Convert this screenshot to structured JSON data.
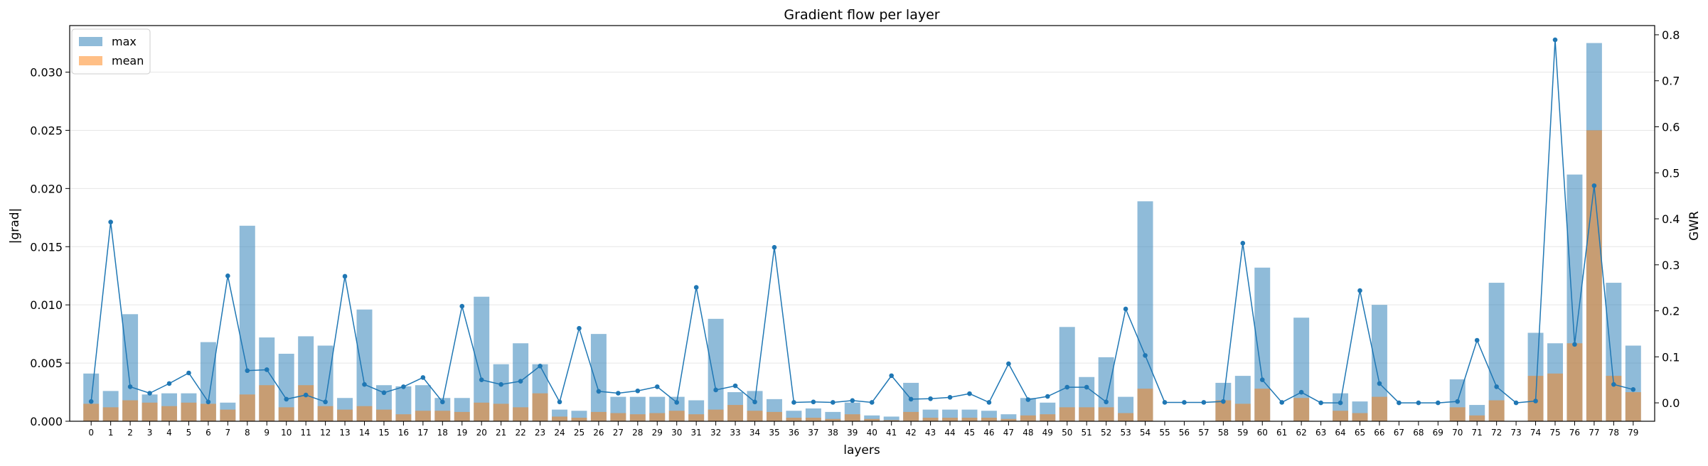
{
  "chart_data": {
    "type": "bar",
    "title": "Gradient flow per layer",
    "xlabel": "layers",
    "ylabel": "|grad|",
    "ylabel_right": "GWR",
    "ylim": [
      0,
      0.034
    ],
    "ylim_right": [
      -0.04,
      0.82
    ],
    "yticks": [
      "0.000",
      "0.005",
      "0.010",
      "0.015",
      "0.020",
      "0.025",
      "0.030"
    ],
    "yticks_right": [
      "0.0",
      "0.1",
      "0.2",
      "0.3",
      "0.4",
      "0.5",
      "0.6",
      "0.7",
      "0.8"
    ],
    "grid": "horizontal",
    "legend_position": "top-left",
    "categories": [
      "0",
      "1",
      "2",
      "3",
      "4",
      "5",
      "6",
      "7",
      "8",
      "9",
      "10",
      "11",
      "12",
      "13",
      "14",
      "15",
      "16",
      "17",
      "18",
      "19",
      "20",
      "21",
      "22",
      "23",
      "24",
      "25",
      "26",
      "27",
      "28",
      "29",
      "30",
      "31",
      "32",
      "33",
      "34",
      "35",
      "36",
      "37",
      "38",
      "39",
      "40",
      "41",
      "42",
      "43",
      "44",
      "45",
      "46",
      "47",
      "48",
      "49",
      "50",
      "51",
      "52",
      "53",
      "54",
      "55",
      "56",
      "57",
      "58",
      "59",
      "60",
      "61",
      "62",
      "63",
      "64",
      "65",
      "66",
      "67",
      "68",
      "69",
      "70",
      "71",
      "72",
      "73",
      "74",
      "75",
      "76",
      "77",
      "78",
      "79"
    ],
    "series": [
      {
        "name": "max",
        "kind": "bar",
        "color": "#1f77b4",
        "values": [
          0.0041,
          0.0026,
          0.0092,
          0.0023,
          0.0024,
          0.0024,
          0.0068,
          0.0016,
          0.0168,
          0.0072,
          0.0058,
          0.0073,
          0.0065,
          0.002,
          0.0096,
          0.0031,
          0.003,
          0.0031,
          0.002,
          0.002,
          0.0107,
          0.0049,
          0.0067,
          0.0049,
          0.001,
          0.0009,
          0.0075,
          0.0021,
          0.0021,
          0.0021,
          0.0021,
          0.0018,
          0.0088,
          0.0025,
          0.0026,
          0.0019,
          0.0009,
          0.0011,
          0.0008,
          0.0016,
          0.0005,
          0.0004,
          0.0033,
          0.001,
          0.001,
          0.001,
          0.0009,
          0.0006,
          0.002,
          0.0016,
          0.0081,
          0.0038,
          0.0055,
          0.0021,
          0.0189,
          0,
          0,
          0,
          0.0033,
          0.0039,
          0.0132,
          0,
          0.0089,
          0,
          0.0024,
          0.0017,
          0.01,
          0,
          0,
          0,
          0.0036,
          0.0014,
          0.0119,
          0,
          0.0076,
          0.0067,
          0.0212,
          0.0325,
          0.0119,
          0.0065
        ]
      },
      {
        "name": "mean",
        "kind": "bar",
        "color": "#ff7f0e",
        "values": [
          0.0015,
          0.0012,
          0.0018,
          0.0016,
          0.0013,
          0.0016,
          0.0015,
          0.001,
          0.0023,
          0.0031,
          0.0012,
          0.0031,
          0.0013,
          0.001,
          0.0013,
          0.001,
          0.0006,
          0.0009,
          0.0009,
          0.0008,
          0.0016,
          0.0015,
          0.0012,
          0.0024,
          0.0004,
          0.0003,
          0.0008,
          0.0007,
          0.0006,
          0.0007,
          0.0009,
          0.0006,
          0.001,
          0.0014,
          0.0009,
          0.0008,
          0.0003,
          0.0003,
          0.0002,
          0.0006,
          0.0002,
          0.0001,
          0.0008,
          0.0003,
          0.0003,
          0.0003,
          0.0003,
          0.0002,
          0.0005,
          0.0006,
          0.0012,
          0.0012,
          0.0012,
          0.0007,
          0.0028,
          0,
          0,
          0,
          0.0018,
          0.0015,
          0.0028,
          0,
          0.002,
          0,
          0.0009,
          0.0007,
          0.0021,
          0,
          0,
          0,
          0.0012,
          0.0005,
          0.0018,
          0,
          0.0039,
          0.0041,
          0.0067,
          0.025,
          0.0039,
          0.0025
        ]
      },
      {
        "name": "GWR",
        "kind": "line",
        "color": "#1f77b4",
        "axis": "right",
        "values": [
          0.003,
          0.393,
          0.035,
          0.021,
          0.042,
          0.065,
          0.002,
          0.276,
          0.07,
          0.072,
          0.008,
          0.017,
          0.002,
          0.275,
          0.04,
          0.022,
          0.035,
          0.055,
          0.002,
          0.21,
          0.05,
          0.04,
          0.047,
          0.08,
          0.002,
          0.162,
          0.025,
          0.021,
          0.026,
          0.035,
          0.001,
          0.251,
          0.028,
          0.037,
          0.002,
          0.338,
          0.001,
          0.002,
          0.001,
          0.005,
          0.001,
          0.059,
          0.008,
          0.009,
          0.012,
          0.02,
          0.001,
          0.085,
          0.007,
          0.014,
          0.034,
          0.034,
          0.002,
          0.204,
          0.103,
          0.001,
          0.001,
          0.001,
          0.003,
          0.347,
          0.05,
          0.001,
          0.023,
          0.0,
          0.0,
          0.244,
          0.042,
          0.0,
          0.0,
          0.0,
          0.003,
          0.136,
          0.035,
          0.0,
          0.004,
          0.789,
          0.127,
          0.472,
          0.04,
          0.029
        ]
      }
    ]
  }
}
